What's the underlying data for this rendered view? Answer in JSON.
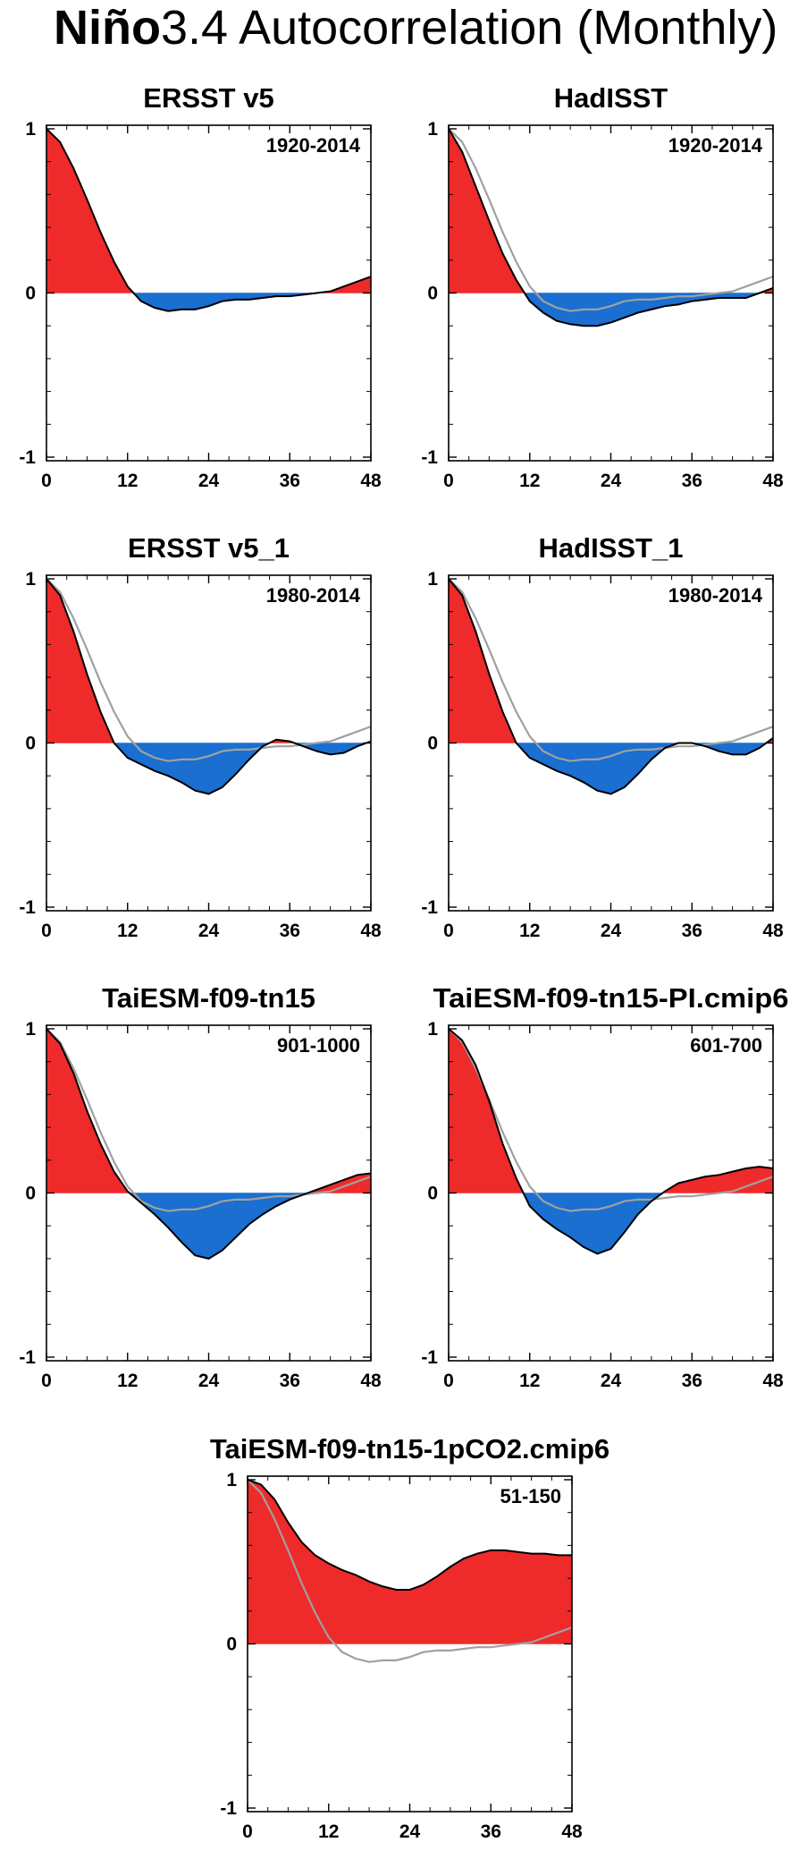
{
  "title": {
    "bold": "Niño",
    "rest": "3.4 Autocorrelation (Monthly)"
  },
  "colors": {
    "positive": "#ee2a2a",
    "negative": "#1a6fd0",
    "line": "#000000",
    "reference": "#a0a0a0"
  },
  "chart_data": [
    {
      "type": "area",
      "title": "ERSST v5",
      "period": "1920-2014",
      "xlim": [
        0,
        48
      ],
      "ylim": [
        -1,
        1
      ],
      "xticks": [
        0,
        12,
        24,
        36,
        48
      ],
      "yticks": [
        -1,
        0,
        1
      ],
      "x": [
        0,
        2,
        4,
        6,
        8,
        10,
        12,
        14,
        16,
        18,
        20,
        22,
        24,
        26,
        28,
        30,
        32,
        34,
        36,
        38,
        40,
        42,
        44,
        46,
        48
      ],
      "series": [
        {
          "values": [
            1.0,
            0.92,
            0.76,
            0.57,
            0.37,
            0.19,
            0.04,
            -0.05,
            -0.09,
            -0.11,
            -0.1,
            -0.1,
            -0.08,
            -0.05,
            -0.04,
            -0.04,
            -0.03,
            -0.02,
            -0.02,
            -0.01,
            0.0,
            0.01,
            0.04,
            0.07,
            0.1
          ]
        }
      ]
    },
    {
      "type": "area",
      "title": "HadISST",
      "period": "1920-2014",
      "xlim": [
        0,
        48
      ],
      "ylim": [
        -1,
        1
      ],
      "xticks": [
        0,
        12,
        24,
        36,
        48
      ],
      "yticks": [
        -1,
        0,
        1
      ],
      "x": [
        0,
        2,
        4,
        6,
        8,
        10,
        12,
        14,
        16,
        18,
        20,
        22,
        24,
        26,
        28,
        30,
        32,
        34,
        36,
        38,
        40,
        42,
        44,
        46,
        48
      ],
      "series": [
        {
          "values": [
            1.0,
            0.86,
            0.65,
            0.44,
            0.24,
            0.08,
            -0.05,
            -0.12,
            -0.17,
            -0.19,
            -0.2,
            -0.2,
            -0.18,
            -0.15,
            -0.12,
            -0.1,
            -0.08,
            -0.07,
            -0.05,
            -0.04,
            -0.03,
            -0.03,
            -0.03,
            0.0,
            0.03
          ]
        },
        {
          "reference": true,
          "values": [
            1.0,
            0.92,
            0.76,
            0.57,
            0.37,
            0.19,
            0.04,
            -0.05,
            -0.09,
            -0.11,
            -0.1,
            -0.1,
            -0.08,
            -0.05,
            -0.04,
            -0.04,
            -0.03,
            -0.02,
            -0.02,
            -0.01,
            0.0,
            0.01,
            0.04,
            0.07,
            0.1
          ]
        }
      ]
    },
    {
      "type": "area",
      "title": "ERSST v5_1",
      "period": "1980-2014",
      "xlim": [
        0,
        48
      ],
      "ylim": [
        -1,
        1
      ],
      "xticks": [
        0,
        12,
        24,
        36,
        48
      ],
      "yticks": [
        -1,
        0,
        1
      ],
      "x": [
        0,
        2,
        4,
        6,
        8,
        10,
        12,
        14,
        16,
        18,
        20,
        22,
        24,
        26,
        28,
        30,
        32,
        34,
        36,
        38,
        40,
        42,
        44,
        46,
        48
      ],
      "series": [
        {
          "values": [
            1.0,
            0.9,
            0.68,
            0.42,
            0.19,
            0.0,
            -0.09,
            -0.13,
            -0.17,
            -0.2,
            -0.24,
            -0.29,
            -0.31,
            -0.27,
            -0.19,
            -0.1,
            -0.02,
            0.02,
            0.01,
            -0.02,
            -0.05,
            -0.07,
            -0.06,
            -0.02,
            0.01
          ]
        },
        {
          "reference": true,
          "values": [
            1.0,
            0.92,
            0.76,
            0.57,
            0.37,
            0.19,
            0.04,
            -0.05,
            -0.09,
            -0.11,
            -0.1,
            -0.1,
            -0.08,
            -0.05,
            -0.04,
            -0.04,
            -0.03,
            -0.02,
            -0.02,
            -0.01,
            0.0,
            0.01,
            0.04,
            0.07,
            0.1
          ]
        }
      ]
    },
    {
      "type": "area",
      "title": "HadISST_1",
      "period": "1980-2014",
      "xlim": [
        0,
        48
      ],
      "ylim": [
        -1,
        1
      ],
      "xticks": [
        0,
        12,
        24,
        36,
        48
      ],
      "yticks": [
        -1,
        0,
        1
      ],
      "x": [
        0,
        2,
        4,
        6,
        8,
        10,
        12,
        14,
        16,
        18,
        20,
        22,
        24,
        26,
        28,
        30,
        32,
        34,
        36,
        38,
        40,
        42,
        44,
        46,
        48
      ],
      "series": [
        {
          "values": [
            1.0,
            0.9,
            0.68,
            0.42,
            0.19,
            0.0,
            -0.09,
            -0.13,
            -0.17,
            -0.2,
            -0.24,
            -0.29,
            -0.31,
            -0.27,
            -0.19,
            -0.1,
            -0.03,
            0.0,
            0.0,
            -0.02,
            -0.05,
            -0.07,
            -0.07,
            -0.03,
            0.03
          ]
        },
        {
          "reference": true,
          "values": [
            1.0,
            0.92,
            0.76,
            0.57,
            0.37,
            0.19,
            0.04,
            -0.05,
            -0.09,
            -0.11,
            -0.1,
            -0.1,
            -0.08,
            -0.05,
            -0.04,
            -0.04,
            -0.03,
            -0.02,
            -0.02,
            -0.01,
            0.0,
            0.01,
            0.04,
            0.07,
            0.1
          ]
        }
      ]
    },
    {
      "type": "area",
      "title": "TaiESM-f09-tn15",
      "period": "901-1000",
      "xlim": [
        0,
        48
      ],
      "ylim": [
        -1,
        1
      ],
      "xticks": [
        0,
        12,
        24,
        36,
        48
      ],
      "yticks": [
        -1,
        0,
        1
      ],
      "x": [
        0,
        2,
        4,
        6,
        8,
        10,
        12,
        14,
        16,
        18,
        20,
        22,
        24,
        26,
        28,
        30,
        32,
        34,
        36,
        38,
        40,
        42,
        44,
        46,
        48
      ],
      "series": [
        {
          "values": [
            1.0,
            0.91,
            0.73,
            0.5,
            0.3,
            0.13,
            0.01,
            -0.06,
            -0.13,
            -0.21,
            -0.3,
            -0.38,
            -0.4,
            -0.35,
            -0.27,
            -0.19,
            -0.13,
            -0.08,
            -0.04,
            -0.01,
            0.02,
            0.05,
            0.08,
            0.11,
            0.12
          ]
        },
        {
          "reference": true,
          "values": [
            1.0,
            0.92,
            0.76,
            0.57,
            0.37,
            0.19,
            0.04,
            -0.05,
            -0.09,
            -0.11,
            -0.1,
            -0.1,
            -0.08,
            -0.05,
            -0.04,
            -0.04,
            -0.03,
            -0.02,
            -0.02,
            -0.01,
            0.0,
            0.01,
            0.04,
            0.07,
            0.1
          ]
        }
      ]
    },
    {
      "type": "area",
      "title": "TaiESM-f09-tn15-PI.cmip6",
      "period": "601-700",
      "xlim": [
        0,
        48
      ],
      "ylim": [
        -1,
        1
      ],
      "xticks": [
        0,
        12,
        24,
        36,
        48
      ],
      "yticks": [
        -1,
        0,
        1
      ],
      "x": [
        0,
        2,
        4,
        6,
        8,
        10,
        12,
        14,
        16,
        18,
        20,
        22,
        24,
        26,
        28,
        30,
        32,
        34,
        36,
        38,
        40,
        42,
        44,
        46,
        48
      ],
      "series": [
        {
          "values": [
            1.0,
            0.93,
            0.78,
            0.56,
            0.3,
            0.09,
            -0.08,
            -0.16,
            -0.22,
            -0.27,
            -0.33,
            -0.37,
            -0.34,
            -0.24,
            -0.13,
            -0.05,
            0.01,
            0.06,
            0.08,
            0.1,
            0.11,
            0.13,
            0.15,
            0.16,
            0.15
          ]
        },
        {
          "reference": true,
          "values": [
            1.0,
            0.92,
            0.76,
            0.57,
            0.37,
            0.19,
            0.04,
            -0.05,
            -0.09,
            -0.11,
            -0.1,
            -0.1,
            -0.08,
            -0.05,
            -0.04,
            -0.04,
            -0.03,
            -0.02,
            -0.02,
            -0.01,
            0.0,
            0.01,
            0.04,
            0.07,
            0.1
          ]
        }
      ]
    },
    {
      "type": "area",
      "title": "TaiESM-f09-tn15-1pCO2.cmip6",
      "period": "51-150",
      "xlim": [
        0,
        48
      ],
      "ylim": [
        -1,
        1
      ],
      "xticks": [
        0,
        12,
        24,
        36,
        48
      ],
      "yticks": [
        -1,
        0,
        1
      ],
      "x": [
        0,
        2,
        4,
        6,
        8,
        10,
        12,
        14,
        16,
        18,
        20,
        22,
        24,
        26,
        28,
        30,
        32,
        34,
        36,
        38,
        40,
        42,
        44,
        46,
        48
      ],
      "series": [
        {
          "values": [
            1.0,
            0.97,
            0.88,
            0.74,
            0.62,
            0.54,
            0.49,
            0.45,
            0.42,
            0.38,
            0.35,
            0.33,
            0.33,
            0.36,
            0.41,
            0.47,
            0.52,
            0.55,
            0.57,
            0.57,
            0.56,
            0.55,
            0.55,
            0.54,
            0.54
          ]
        },
        {
          "reference": true,
          "values": [
            1.0,
            0.92,
            0.76,
            0.57,
            0.37,
            0.19,
            0.04,
            -0.05,
            -0.09,
            -0.11,
            -0.1,
            -0.1,
            -0.08,
            -0.05,
            -0.04,
            -0.04,
            -0.03,
            -0.02,
            -0.02,
            -0.01,
            0.0,
            0.01,
            0.04,
            0.07,
            0.1
          ]
        }
      ]
    }
  ]
}
